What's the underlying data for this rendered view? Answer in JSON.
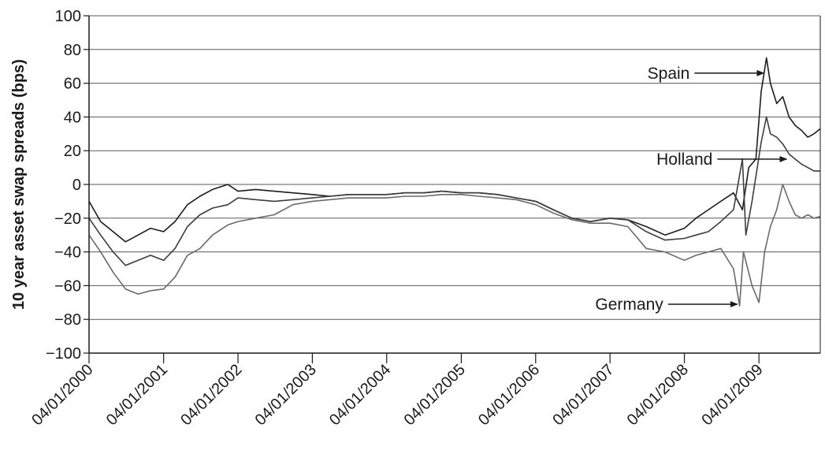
{
  "chart_data": {
    "type": "line",
    "title": "",
    "xlabel": "",
    "ylabel": "10 year asset swap spreads (bps)",
    "ylim": [
      -100,
      100
    ],
    "yticks": [
      -100,
      -80,
      -60,
      -40,
      -20,
      0,
      20,
      40,
      60,
      80,
      100
    ],
    "ytick_labels": [
      "−100",
      "−80",
      "−60",
      "−40",
      "−20",
      "0",
      "20",
      "40",
      "60",
      "80",
      "100"
    ],
    "xlim": [
      "2000-01-04",
      "2009-11-01"
    ],
    "xticks": [
      "2000-01-04",
      "2001-01-04",
      "2002-01-04",
      "2003-01-04",
      "2004-01-04",
      "2005-01-04",
      "2006-01-04",
      "2007-01-04",
      "2008-01-04",
      "2009-01-04"
    ],
    "xtick_labels": [
      "04/01/2000",
      "04/01/2001",
      "04/01/2002",
      "04/01/2003",
      "04/01/2004",
      "04/01/2005",
      "04/01/2006",
      "04/01/2007",
      "04/01/2008",
      "04/01/2009"
    ],
    "grid": "horizontal",
    "series": [
      {
        "key": "spain",
        "color": "#1c1c1c",
        "points": [
          [
            "2000-01-04",
            -10
          ],
          [
            "2000-03-01",
            -22
          ],
          [
            "2000-05-01",
            -28
          ],
          [
            "2000-07-01",
            -34
          ],
          [
            "2000-09-01",
            -30
          ],
          [
            "2000-11-01",
            -26
          ],
          [
            "2001-01-04",
            -28
          ],
          [
            "2001-03-01",
            -22
          ],
          [
            "2001-05-01",
            -12
          ],
          [
            "2001-07-01",
            -7
          ],
          [
            "2001-09-01",
            -3
          ],
          [
            "2001-11-15",
            0
          ],
          [
            "2002-01-04",
            -4
          ],
          [
            "2002-04-01",
            -3
          ],
          [
            "2002-07-01",
            -4
          ],
          [
            "2002-10-01",
            -5
          ],
          [
            "2003-01-04",
            -6
          ],
          [
            "2003-04-01",
            -7
          ],
          [
            "2003-07-01",
            -6
          ],
          [
            "2003-10-01",
            -6
          ],
          [
            "2004-01-04",
            -6
          ],
          [
            "2004-04-01",
            -5
          ],
          [
            "2004-07-01",
            -5
          ],
          [
            "2004-10-01",
            -4
          ],
          [
            "2005-01-04",
            -5
          ],
          [
            "2005-04-01",
            -5
          ],
          [
            "2005-07-01",
            -6
          ],
          [
            "2005-10-01",
            -8
          ],
          [
            "2006-01-04",
            -10
          ],
          [
            "2006-04-01",
            -15
          ],
          [
            "2006-07-01",
            -20
          ],
          [
            "2006-10-01",
            -22
          ],
          [
            "2007-01-04",
            -20
          ],
          [
            "2007-04-01",
            -21
          ],
          [
            "2007-07-01",
            -25
          ],
          [
            "2007-10-01",
            -30
          ],
          [
            "2008-01-04",
            -26
          ],
          [
            "2008-03-01",
            -20
          ],
          [
            "2008-05-01",
            -15
          ],
          [
            "2008-07-01",
            -10
          ],
          [
            "2008-09-01",
            -5
          ],
          [
            "2008-10-15",
            -15
          ],
          [
            "2008-11-15",
            10
          ],
          [
            "2008-12-20",
            15
          ],
          [
            "2009-01-15",
            55
          ],
          [
            "2009-02-10",
            75
          ],
          [
            "2009-03-01",
            60
          ],
          [
            "2009-04-01",
            48
          ],
          [
            "2009-05-01",
            52
          ],
          [
            "2009-06-01",
            40
          ],
          [
            "2009-07-01",
            35
          ],
          [
            "2009-08-01",
            32
          ],
          [
            "2009-09-01",
            28
          ],
          [
            "2009-10-01",
            30
          ],
          [
            "2009-11-01",
            33
          ]
        ]
      },
      {
        "key": "holland",
        "color": "#3d3d3d",
        "points": [
          [
            "2000-01-04",
            -20
          ],
          [
            "2000-03-01",
            -30
          ],
          [
            "2000-05-01",
            -40
          ],
          [
            "2000-07-01",
            -48
          ],
          [
            "2000-09-01",
            -45
          ],
          [
            "2000-11-01",
            -42
          ],
          [
            "2001-01-04",
            -45
          ],
          [
            "2001-03-01",
            -38
          ],
          [
            "2001-05-01",
            -25
          ],
          [
            "2001-07-01",
            -18
          ],
          [
            "2001-09-01",
            -14
          ],
          [
            "2001-11-15",
            -12
          ],
          [
            "2002-01-04",
            -8
          ],
          [
            "2002-04-01",
            -9
          ],
          [
            "2002-07-01",
            -10
          ],
          [
            "2002-10-01",
            -9
          ],
          [
            "2003-01-04",
            -8
          ],
          [
            "2003-04-01",
            -7
          ],
          [
            "2003-07-01",
            -6
          ],
          [
            "2003-10-01",
            -6
          ],
          [
            "2004-01-04",
            -6
          ],
          [
            "2004-04-01",
            -5
          ],
          [
            "2004-07-01",
            -5
          ],
          [
            "2004-10-01",
            -4
          ],
          [
            "2005-01-04",
            -5
          ],
          [
            "2005-04-01",
            -5
          ],
          [
            "2005-07-01",
            -6
          ],
          [
            "2005-10-01",
            -8
          ],
          [
            "2006-01-04",
            -10
          ],
          [
            "2006-04-01",
            -15
          ],
          [
            "2006-07-01",
            -20
          ],
          [
            "2006-10-01",
            -22
          ],
          [
            "2007-01-04",
            -20
          ],
          [
            "2007-04-01",
            -21
          ],
          [
            "2007-07-01",
            -28
          ],
          [
            "2007-10-01",
            -33
          ],
          [
            "2008-01-04",
            -32
          ],
          [
            "2008-03-01",
            -30
          ],
          [
            "2008-05-01",
            -28
          ],
          [
            "2008-07-01",
            -22
          ],
          [
            "2008-09-01",
            -15
          ],
          [
            "2008-10-15",
            15
          ],
          [
            "2008-11-01",
            -30
          ],
          [
            "2008-12-01",
            -10
          ],
          [
            "2009-01-15",
            25
          ],
          [
            "2009-02-10",
            40
          ],
          [
            "2009-03-01",
            30
          ],
          [
            "2009-04-01",
            28
          ],
          [
            "2009-05-01",
            24
          ],
          [
            "2009-06-01",
            18
          ],
          [
            "2009-07-01",
            15
          ],
          [
            "2009-08-01",
            12
          ],
          [
            "2009-09-01",
            10
          ],
          [
            "2009-10-01",
            8
          ],
          [
            "2009-11-01",
            8
          ]
        ]
      },
      {
        "key": "germany",
        "color": "#6a6a6a",
        "points": [
          [
            "2000-01-04",
            -30
          ],
          [
            "2000-03-01",
            -40
          ],
          [
            "2000-05-01",
            -52
          ],
          [
            "2000-07-01",
            -62
          ],
          [
            "2000-09-01",
            -65
          ],
          [
            "2000-11-01",
            -63
          ],
          [
            "2001-01-04",
            -62
          ],
          [
            "2001-03-01",
            -55
          ],
          [
            "2001-05-01",
            -42
          ],
          [
            "2001-07-01",
            -38
          ],
          [
            "2001-09-01",
            -30
          ],
          [
            "2001-11-15",
            -24
          ],
          [
            "2002-01-04",
            -22
          ],
          [
            "2002-04-01",
            -20
          ],
          [
            "2002-07-01",
            -18
          ],
          [
            "2002-10-01",
            -12
          ],
          [
            "2003-01-04",
            -10
          ],
          [
            "2003-04-01",
            -9
          ],
          [
            "2003-07-01",
            -8
          ],
          [
            "2003-10-01",
            -8
          ],
          [
            "2004-01-04",
            -8
          ],
          [
            "2004-04-01",
            -7
          ],
          [
            "2004-07-01",
            -7
          ],
          [
            "2004-10-01",
            -6
          ],
          [
            "2005-01-04",
            -6
          ],
          [
            "2005-04-01",
            -7
          ],
          [
            "2005-07-01",
            -8
          ],
          [
            "2005-10-01",
            -9
          ],
          [
            "2006-01-04",
            -12
          ],
          [
            "2006-04-01",
            -17
          ],
          [
            "2006-07-01",
            -21
          ],
          [
            "2006-10-01",
            -23
          ],
          [
            "2007-01-04",
            -23
          ],
          [
            "2007-04-01",
            -25
          ],
          [
            "2007-07-01",
            -38
          ],
          [
            "2007-10-01",
            -40
          ],
          [
            "2008-01-04",
            -45
          ],
          [
            "2008-03-01",
            -42
          ],
          [
            "2008-05-01",
            -40
          ],
          [
            "2008-07-01",
            -38
          ],
          [
            "2008-09-01",
            -50
          ],
          [
            "2008-10-01",
            -72
          ],
          [
            "2008-10-20",
            -40
          ],
          [
            "2008-12-01",
            -60
          ],
          [
            "2009-01-04",
            -70
          ],
          [
            "2009-02-01",
            -40
          ],
          [
            "2009-03-01",
            -25
          ],
          [
            "2009-04-01",
            -15
          ],
          [
            "2009-05-01",
            0
          ],
          [
            "2009-06-01",
            -10
          ],
          [
            "2009-07-01",
            -18
          ],
          [
            "2009-08-01",
            -20
          ],
          [
            "2009-09-01",
            -18
          ],
          [
            "2009-10-01",
            -20
          ],
          [
            "2009-11-01",
            -19
          ]
        ]
      }
    ],
    "annotations": [
      {
        "key": "spain",
        "text": "Spain",
        "target": [
          "2009-01-28",
          66
        ]
      },
      {
        "key": "holland",
        "text": "Holland",
        "target": [
          "2009-05-20",
          15
        ]
      },
      {
        "key": "germany",
        "text": "Germany",
        "target": [
          "2008-09-20",
          -71
        ]
      }
    ]
  }
}
